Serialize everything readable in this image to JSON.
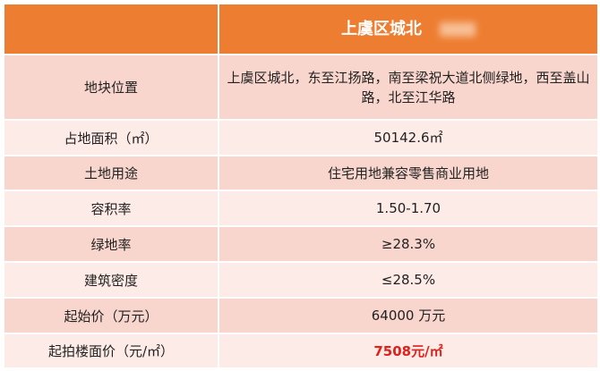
{
  "header": {
    "title": "上虞区城北"
  },
  "rows": [
    {
      "label": "地块位置",
      "value": "上虞区城北，东至江扬路，南至梁祝大道北侧绿地，西至盖山路，北至江华路"
    },
    {
      "label": "占地面积（㎡）",
      "value": "50142.6㎡"
    },
    {
      "label": "土地用途",
      "value": "住宅用地兼容零售商业用地"
    },
    {
      "label": "容积率",
      "value": "1.50-1.70"
    },
    {
      "label": "绿地率",
      "value": "≥28.3%"
    },
    {
      "label": "建筑密度",
      "value": "≤28.5%"
    },
    {
      "label": "起始价（万元）",
      "value": "64000 万元"
    },
    {
      "label": "起拍楼面价（元/㎡）",
      "value": "7508元/㎡"
    }
  ],
  "colors": {
    "header": "#ED7D31",
    "row_dark": "#F8D6CD",
    "row_light": "#FCEBE6",
    "highlight": "#E0201B"
  }
}
